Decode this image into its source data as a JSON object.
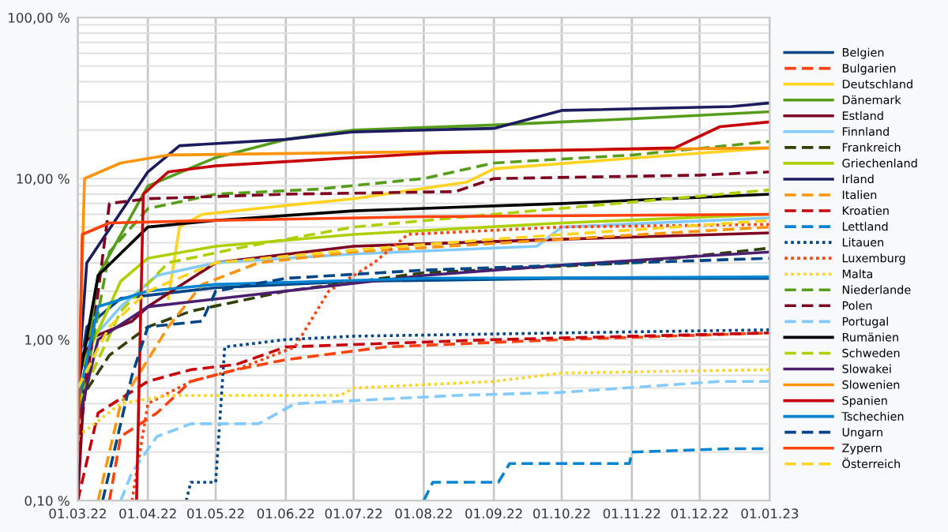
{
  "chart_data": {
    "type": "line",
    "log": "y",
    "grid": true,
    "legend": "right",
    "xlim": [
      "2022-03-01",
      "2023-01-01"
    ],
    "xticks": [
      {
        "value": "2022-03-01",
        "label": "01.03.22"
      },
      {
        "value": "2022-04-01",
        "label": "01.04.22"
      },
      {
        "value": "2022-05-01",
        "label": "01.05.22"
      },
      {
        "value": "2022-06-01",
        "label": "01.06.22"
      },
      {
        "value": "2022-07-01",
        "label": "01.07.22"
      },
      {
        "value": "2022-08-01",
        "label": "01.08.22"
      },
      {
        "value": "2022-09-01",
        "label": "01.09.22"
      },
      {
        "value": "2022-10-01",
        "label": "01.10.22"
      },
      {
        "value": "2022-11-01",
        "label": "01.11.22"
      },
      {
        "value": "2022-12-01",
        "label": "01.12.22"
      },
      {
        "value": "2023-01-01",
        "label": "01.01.23"
      }
    ],
    "ylim": [
      0.1,
      100
    ],
    "yticks": [
      {
        "value": 0.1,
        "label": "0,10 %"
      },
      {
        "value": 1,
        "label": "1,00 %"
      },
      {
        "value": 10,
        "label": "10,00 %"
      },
      {
        "value": 100,
        "label": "100,00 %"
      }
    ],
    "series": [
      {
        "name": "Belgien",
        "color": "#004586",
        "line_style": "solid",
        "x": [
          "2022-03-01",
          "2022-03-05",
          "2022-03-20",
          "2022-05-01",
          "2022-07-01",
          "2022-10-01",
          "2023-01-01"
        ],
        "values": [
          0.5,
          1.2,
          1.8,
          2.1,
          2.3,
          2.4,
          2.4
        ]
      },
      {
        "name": "Bulgarien",
        "color": "#ff420e",
        "line_style": "dashed",
        "x": [
          "2022-03-15",
          "2022-03-20",
          "2022-04-05",
          "2022-04-20",
          "2022-05-10",
          "2022-06-01",
          "2022-07-15",
          "2022-10-01",
          "2023-01-01"
        ],
        "values": [
          0.1,
          0.25,
          0.35,
          0.55,
          0.65,
          0.75,
          0.9,
          1.0,
          1.1
        ]
      },
      {
        "name": "Deutschland",
        "color": "#ffd320",
        "line_style": "solid",
        "x": [
          "2022-04-10",
          "2022-04-15",
          "2022-04-25",
          "2022-06-01",
          "2022-07-01",
          "2022-08-20",
          "2022-09-01",
          "2022-10-20",
          "2023-01-01"
        ],
        "values": [
          1.8,
          5.0,
          6.0,
          6.8,
          7.5,
          9.5,
          11.5,
          13.0,
          15.5
        ]
      },
      {
        "name": "Dänemark",
        "color": "#579d1c",
        "line_style": "solid",
        "x": [
          "2022-03-01",
          "2022-03-10",
          "2022-04-01",
          "2022-05-01",
          "2022-06-01",
          "2022-07-01",
          "2022-09-01",
          "2022-11-01",
          "2023-01-01"
        ],
        "values": [
          0.3,
          2.5,
          9.0,
          13.5,
          17.5,
          20.0,
          21.5,
          23.5,
          26.0
        ]
      },
      {
        "name": "Estland",
        "color": "#7e0021",
        "line_style": "solid",
        "x": [
          "2022-03-01",
          "2022-03-05",
          "2022-03-25",
          "2022-04-01",
          "2022-05-01",
          "2022-07-01",
          "2022-10-01",
          "2023-01-01"
        ],
        "values": [
          0.1,
          1.0,
          1.3,
          1.6,
          3.0,
          3.8,
          4.2,
          4.6
        ]
      },
      {
        "name": "Finnland",
        "color": "#83caff",
        "line_style": "solid",
        "x": [
          "2022-03-01",
          "2022-03-20",
          "2022-04-05",
          "2022-05-01",
          "2022-07-01",
          "2022-09-20",
          "2022-10-01",
          "2023-01-01"
        ],
        "values": [
          0.8,
          1.6,
          2.5,
          3.0,
          3.4,
          3.8,
          5.0,
          5.7
        ]
      },
      {
        "name": "Frankreich",
        "color": "#314004",
        "line_style": "dashed",
        "x": [
          "2022-03-01",
          "2022-03-15",
          "2022-04-01",
          "2022-04-20",
          "2022-06-01",
          "2022-08-01",
          "2022-11-01",
          "2023-01-01"
        ],
        "values": [
          0.4,
          0.8,
          1.2,
          1.5,
          2.0,
          2.6,
          3.0,
          3.7
        ]
      },
      {
        "name": "Griechenland",
        "color": "#aecf00",
        "line_style": "solid",
        "x": [
          "2022-03-01",
          "2022-03-20",
          "2022-04-01",
          "2022-05-01",
          "2022-07-01",
          "2022-10-01",
          "2023-01-01"
        ],
        "values": [
          0.6,
          2.3,
          3.2,
          3.8,
          4.5,
          5.3,
          6.0
        ]
      },
      {
        "name": "Irland",
        "color": "#1c1c5e",
        "line_style": "solid",
        "x": [
          "2022-03-01",
          "2022-03-05",
          "2022-04-01",
          "2022-04-15",
          "2022-06-01",
          "2022-07-01",
          "2022-09-01",
          "2022-10-01",
          "2022-12-15",
          "2023-01-01"
        ],
        "values": [
          0.5,
          3.0,
          11.0,
          16.0,
          17.5,
          19.5,
          20.5,
          26.5,
          28.0,
          29.5
        ]
      },
      {
        "name": "Italien",
        "color": "#ff950e",
        "line_style": "dashed",
        "x": [
          "2022-03-10",
          "2022-03-20",
          "2022-04-10",
          "2022-04-25",
          "2022-05-20",
          "2022-07-01",
          "2022-10-01",
          "2023-01-01"
        ],
        "values": [
          0.1,
          0.4,
          1.2,
          2.2,
          3.0,
          3.5,
          4.2,
          5.0
        ]
      },
      {
        "name": "Kroatien",
        "color": "#c5000b",
        "line_style": "dashed",
        "x": [
          "2022-03-01",
          "2022-03-10",
          "2022-04-01",
          "2022-04-20",
          "2022-05-10",
          "2022-06-01",
          "2022-09-01",
          "2023-01-01"
        ],
        "values": [
          0.1,
          0.35,
          0.55,
          0.65,
          0.7,
          0.9,
          1.0,
          1.1
        ]
      },
      {
        "name": "Lettland",
        "color": "#0084d1",
        "line_style": "dashed",
        "x": [
          "2022-08-01",
          "2022-08-05",
          "2022-09-03",
          "2022-09-08",
          "2022-10-31",
          "2022-11-01",
          "2022-12-14",
          "2023-01-01"
        ],
        "values": [
          0.1,
          0.13,
          0.13,
          0.17,
          0.17,
          0.2,
          0.21,
          0.21
        ]
      },
      {
        "name": "Litauen",
        "color": "#004586",
        "line_style": "dotted",
        "x": [
          "2022-04-18",
          "2022-04-20",
          "2022-05-01",
          "2022-05-05",
          "2022-06-01",
          "2022-07-01",
          "2022-10-01",
          "2023-01-01"
        ],
        "values": [
          0.1,
          0.13,
          0.13,
          0.9,
          1.0,
          1.05,
          1.1,
          1.15
        ]
      },
      {
        "name": "Luxemburg",
        "color": "#ff420e",
        "line_style": "dotted",
        "x": [
          "2022-03-25",
          "2022-04-01",
          "2022-04-20",
          "2022-05-10",
          "2022-06-05",
          "2022-06-20",
          "2022-07-10",
          "2022-07-25",
          "2022-10-01",
          "2023-01-01"
        ],
        "values": [
          0.1,
          0.4,
          0.55,
          0.65,
          0.9,
          2.0,
          3.0,
          4.5,
          5.0,
          5.2
        ]
      },
      {
        "name": "Malta",
        "color": "#ffd320",
        "line_style": "dotted",
        "x": [
          "2022-03-01",
          "2022-03-20",
          "2022-04-10",
          "2022-06-25",
          "2022-07-01",
          "2022-09-01",
          "2022-10-01",
          "2023-01-01"
        ],
        "values": [
          0.25,
          0.4,
          0.45,
          0.45,
          0.5,
          0.55,
          0.62,
          0.65
        ]
      },
      {
        "name": "Niederlande",
        "color": "#579d1c",
        "line_style": "dashed",
        "x": [
          "2022-03-01",
          "2022-03-15",
          "2022-04-01",
          "2022-05-01",
          "2022-06-15",
          "2022-08-01",
          "2022-09-01",
          "2022-11-01",
          "2023-01-01"
        ],
        "values": [
          0.3,
          3.5,
          6.5,
          8.0,
          8.6,
          10.0,
          12.5,
          14.0,
          17.0
        ]
      },
      {
        "name": "Polen",
        "color": "#7e0021",
        "line_style": "dashed",
        "x": [
          "2022-03-01",
          "2022-03-15",
          "2022-04-01",
          "2022-06-01",
          "2022-08-15",
          "2022-09-01",
          "2022-12-01",
          "2023-01-01"
        ],
        "values": [
          0.2,
          7.0,
          7.5,
          8.0,
          8.3,
          10.0,
          10.5,
          11.0
        ]
      },
      {
        "name": "Portugal",
        "color": "#83caff",
        "line_style": "dashed",
        "x": [
          "2022-03-20",
          "2022-03-25",
          "2022-04-05",
          "2022-04-20",
          "2022-05-20",
          "2022-06-05",
          "2022-08-15",
          "2022-10-01",
          "2022-12-10",
          "2023-01-01"
        ],
        "values": [
          0.1,
          0.15,
          0.25,
          0.3,
          0.3,
          0.4,
          0.45,
          0.47,
          0.55,
          0.55
        ]
      },
      {
        "name": "Rumänien",
        "color": "#000000",
        "line_style": "solid",
        "x": [
          "2022-03-01",
          "2022-03-10",
          "2022-04-01",
          "2022-05-01",
          "2022-07-01",
          "2022-10-01",
          "2023-01-01"
        ],
        "values": [
          0.5,
          2.5,
          5.0,
          5.5,
          6.3,
          7.0,
          8.0
        ]
      },
      {
        "name": "Schweden",
        "color": "#aecf00",
        "line_style": "dashed",
        "x": [
          "2022-03-01",
          "2022-03-20",
          "2022-04-10",
          "2022-05-15",
          "2022-07-01",
          "2022-09-01",
          "2023-01-01"
        ],
        "values": [
          0.4,
          1.5,
          3.0,
          3.8,
          5.0,
          6.0,
          8.5
        ]
      },
      {
        "name": "Slowakei",
        "color": "#4b1f6f",
        "line_style": "solid",
        "x": [
          "2022-03-01",
          "2022-03-10",
          "2022-04-01",
          "2022-06-01",
          "2022-08-01",
          "2022-10-01",
          "2022-12-01",
          "2023-01-01"
        ],
        "values": [
          0.3,
          1.0,
          1.6,
          2.0,
          2.5,
          2.9,
          3.3,
          3.5
        ]
      },
      {
        "name": "Slowenien",
        "color": "#ff950e",
        "line_style": "solid",
        "x": [
          "2022-03-01",
          "2022-03-04",
          "2022-03-20",
          "2022-04-10",
          "2022-07-01",
          "2022-10-01",
          "2023-01-01"
        ],
        "values": [
          0.3,
          10.0,
          12.5,
          14.0,
          14.5,
          15.0,
          15.5
        ]
      },
      {
        "name": "Spanien",
        "color": "#c5000b",
        "line_style": "solid",
        "x": [
          "2022-03-27",
          "2022-03-30",
          "2022-04-10",
          "2022-05-01",
          "2022-07-01",
          "2022-08-10",
          "2022-11-20",
          "2022-12-10",
          "2023-01-01"
        ],
        "values": [
          0.1,
          8.0,
          11.0,
          12.0,
          13.5,
          14.5,
          15.5,
          21.0,
          22.5
        ]
      },
      {
        "name": "Tschechien",
        "color": "#0084d1",
        "line_style": "solid",
        "x": [
          "2022-03-01",
          "2022-03-10",
          "2022-04-01",
          "2022-05-01",
          "2022-08-01",
          "2023-01-01"
        ],
        "values": [
          0.4,
          1.6,
          2.0,
          2.2,
          2.4,
          2.45
        ]
      },
      {
        "name": "Ungarn",
        "color": "#004586",
        "line_style": "dashed",
        "x": [
          "2022-03-12",
          "2022-03-25",
          "2022-04-01",
          "2022-04-25",
          "2022-05-01",
          "2022-06-01",
          "2022-08-01",
          "2022-11-01",
          "2023-01-01"
        ],
        "values": [
          0.1,
          0.6,
          1.2,
          1.3,
          2.0,
          2.4,
          2.7,
          3.0,
          3.2
        ]
      },
      {
        "name": "Zypern",
        "color": "#ff420e",
        "line_style": "solid",
        "x": [
          "2022-03-01",
          "2022-03-03",
          "2022-03-15",
          "2022-05-01",
          "2022-08-01",
          "2023-01-01"
        ],
        "values": [
          0.2,
          4.5,
          5.3,
          5.5,
          5.8,
          6.0
        ]
      },
      {
        "name": "Österreich",
        "color": "#ffd320",
        "line_style": "dashed",
        "x": [
          "2022-03-01",
          "2022-03-15",
          "2022-04-01",
          "2022-05-01",
          "2022-07-01",
          "2022-09-01",
          "2022-11-01",
          "2023-01-01"
        ],
        "values": [
          0.5,
          1.2,
          2.0,
          3.0,
          3.6,
          4.2,
          4.8,
          5.5
        ]
      }
    ]
  }
}
